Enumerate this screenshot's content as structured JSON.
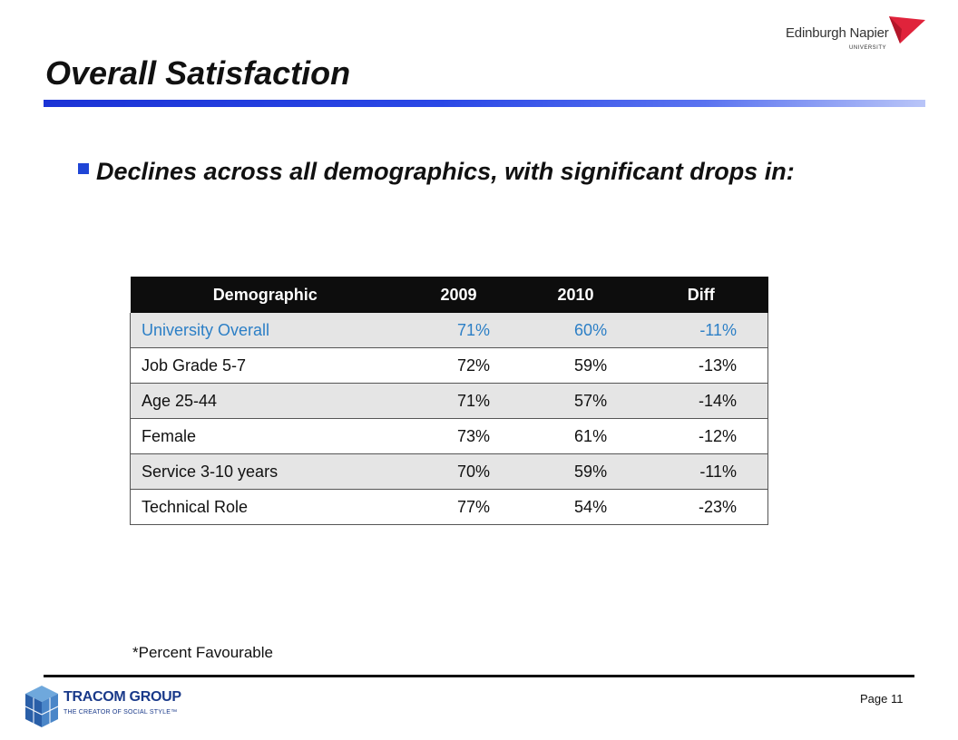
{
  "header": {
    "title": "Overall Satisfaction",
    "logo_name": "Edinburgh Napier",
    "logo_sub": "UNIVERSITY"
  },
  "bullet": {
    "text": "Declines across all demographics, with significant drops in:"
  },
  "table": {
    "headers": [
      "Demographic",
      "2009",
      "2010",
      "Diff"
    ],
    "rows": [
      {
        "demographic": "University Overall",
        "y2009": "71%",
        "y2010": "60%",
        "diff": "-11%"
      },
      {
        "demographic": "Job Grade 5-7",
        "y2009": "72%",
        "y2010": "59%",
        "diff": "-13%"
      },
      {
        "demographic": "Age 25-44",
        "y2009": "71%",
        "y2010": "57%",
        "diff": "-14%"
      },
      {
        "demographic": "Female",
        "y2009": "73%",
        "y2010": "61%",
        "diff": "-12%"
      },
      {
        "demographic": "Service 3-10 years",
        "y2009": "70%",
        "y2010": "59%",
        "diff": "-11%"
      },
      {
        "demographic": "Technical Role",
        "y2009": "77%",
        "y2010": "54%",
        "diff": "-23%"
      }
    ]
  },
  "footnote": "*Percent Favourable",
  "footer": {
    "logo_name": "TRACOM GROUP",
    "logo_tagline": "THE CREATOR OF SOCIAL STYLE™",
    "page": "Page 11"
  },
  "colors": {
    "accent": "#1f45d6",
    "highlight_row_text": "#2c7fc6",
    "header_bg": "#0d0d0d",
    "napier_red": "#e0233b"
  }
}
